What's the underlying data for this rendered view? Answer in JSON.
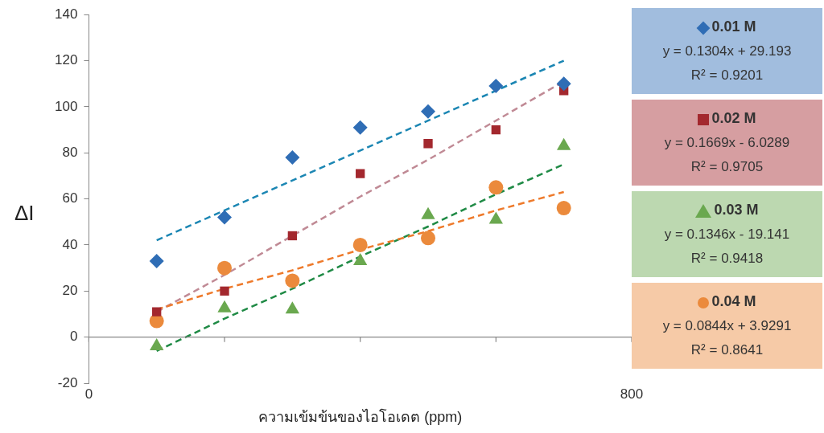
{
  "chart_data": {
    "type": "scatter",
    "xlabel": "ความเข้มข้นของไอโอเดต (ppm)",
    "ylabel": "ΔI",
    "x": [
      100,
      200,
      300,
      400,
      500,
      600,
      700
    ],
    "series": [
      {
        "name": "0.01 M",
        "type": "scatter",
        "marker": "diamond",
        "color": "#2f6db5",
        "values": [
          33,
          52,
          78,
          91,
          98,
          109,
          110
        ]
      },
      {
        "name": "0.02 M",
        "type": "scatter",
        "marker": "square",
        "color": "#a3282e",
        "values": [
          11,
          20,
          44,
          71,
          84,
          90,
          107
        ]
      },
      {
        "name": "0.03 M",
        "type": "scatter",
        "marker": "triangle",
        "color": "#6aa84f",
        "values": [
          -4,
          12.5,
          12,
          33,
          53,
          51,
          83
        ]
      },
      {
        "name": "0.04 M",
        "type": "scatter",
        "marker": "circle",
        "color": "#eb8a3c",
        "values": [
          7,
          30,
          24.5,
          40,
          43,
          65,
          56
        ]
      },
      {
        "type": "line",
        "line_style": "dashed",
        "color": "#1b86b3",
        "values": [
          42,
          55,
          68,
          81,
          94,
          107,
          120
        ]
      },
      {
        "type": "line",
        "line_style": "dashed",
        "color": "#c08a95",
        "values": [
          11,
          27,
          44,
          61,
          77,
          94,
          111
        ]
      },
      {
        "type": "line",
        "line_style": "dashed",
        "color": "#1f8a45",
        "values": [
          -6,
          8,
          21,
          35,
          48,
          62,
          75
        ]
      },
      {
        "type": "line",
        "line_style": "dashed",
        "color": "#ee7a2b",
        "values": [
          12,
          21,
          29,
          38,
          46,
          55,
          63
        ]
      }
    ],
    "xlim": [
      0,
      800
    ],
    "xticks": [
      0,
      {
        "value": 200,
        "label": null
      },
      {
        "value": 400,
        "label": null
      },
      {
        "value": 600,
        "label": null
      },
      800
    ],
    "ylim": [
      -20,
      140
    ],
    "yticks": [
      -20,
      0,
      20,
      40,
      60,
      80,
      100,
      120,
      140
    ],
    "legend": "right",
    "annotations": [
      "y = 0.1304x + 29.193",
      "R² = 0.9201",
      "y = 0.1669x - 6.0289",
      "R² = 0.9705",
      "y = 0.1346x - 19.141",
      "R² = 0.9418",
      "y = 0.0844x + 3.9291",
      "R² = 0.8641"
    ]
  }
}
